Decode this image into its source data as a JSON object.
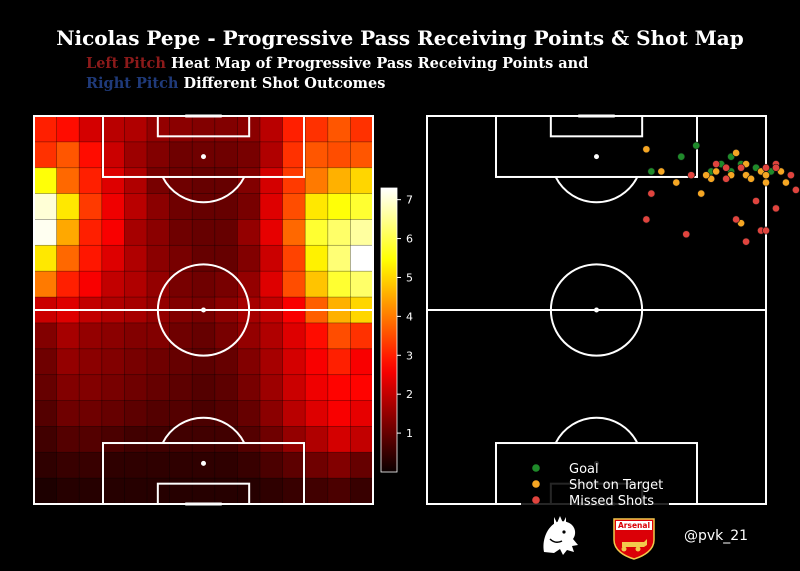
{
  "title": "Nicolas Pepe - Progressive Pass Receiving Points & Shot Map",
  "subtitle": {
    "line1_highlight": "Left Pitch",
    "line1_text": " Heat Map of Progressive Pass Receiving Points and",
    "line2_highlight": "Right Pitch",
    "line2_text": " Different Shot Outcomes",
    "left_color": "#8b1a1a",
    "right_color": "#1f3a7a"
  },
  "handle": "@pvk_21",
  "logos": {
    "league": "premier-league-lion-logo",
    "club": "arsenal-crest",
    "club_text": "Arsenal"
  },
  "chart_data": [
    {
      "type": "heatmap",
      "colormap": "hot",
      "colorbar": {
        "min": 0,
        "max": 7.3,
        "ticks": [
          1,
          2,
          3,
          4,
          5,
          6,
          7
        ]
      },
      "rows": 15,
      "cols": 15,
      "values": [
        [
          3.0,
          2.8,
          2.2,
          1.9,
          1.8,
          1.5,
          1.4,
          1.3,
          1.3,
          1.4,
          1.9,
          3.0,
          3.2,
          3.6,
          3.2
        ],
        [
          3.2,
          3.6,
          2.8,
          2.1,
          1.6,
          1.3,
          1.1,
          1.1,
          1.1,
          1.2,
          1.8,
          3.2,
          3.6,
          3.5,
          3.6
        ],
        [
          5.5,
          3.8,
          3.0,
          2.3,
          1.8,
          1.2,
          1.1,
          1.0,
          1.0,
          1.3,
          2.2,
          3.3,
          4.0,
          4.6,
          5.0
        ],
        [
          7.0,
          5.2,
          3.3,
          2.5,
          1.9,
          1.4,
          1.1,
          1.0,
          1.0,
          1.2,
          2.3,
          3.5,
          5.2,
          5.5,
          5.8
        ],
        [
          7.2,
          4.5,
          3.0,
          2.6,
          1.7,
          1.4,
          1.1,
          1.0,
          1.0,
          1.5,
          2.4,
          3.8,
          5.8,
          6.2,
          6.6
        ],
        [
          5.2,
          3.8,
          2.9,
          2.3,
          1.8,
          1.4,
          1.2,
          1.0,
          1.0,
          1.3,
          2.1,
          3.4,
          5.3,
          6.3,
          7.3
        ],
        [
          4.0,
          3.0,
          2.6,
          2.0,
          1.8,
          1.5,
          1.2,
          1.1,
          1.2,
          1.5,
          2.3,
          3.5,
          4.8,
          5.8,
          6.2
        ],
        [
          2.1,
          2.3,
          2.0,
          1.8,
          1.7,
          1.5,
          1.3,
          1.2,
          1.4,
          1.7,
          2.0,
          2.6,
          3.7,
          4.6,
          5.0
        ],
        [
          1.3,
          1.7,
          1.5,
          1.4,
          1.3,
          1.3,
          1.1,
          1.0,
          1.2,
          1.5,
          1.8,
          2.3,
          2.8,
          3.5,
          3.2
        ],
        [
          1.1,
          1.5,
          1.4,
          1.3,
          1.2,
          1.1,
          1.0,
          0.9,
          1.0,
          1.3,
          1.7,
          2.2,
          2.6,
          3.0,
          2.6
        ],
        [
          1.0,
          1.3,
          1.3,
          1.2,
          1.1,
          1.0,
          0.9,
          0.8,
          0.9,
          1.2,
          1.6,
          2.1,
          2.5,
          2.7,
          2.7
        ],
        [
          0.8,
          1.1,
          1.1,
          1.0,
          0.9,
          0.8,
          0.8,
          0.7,
          0.8,
          1.0,
          1.4,
          1.9,
          2.3,
          2.6,
          2.4
        ],
        [
          0.6,
          0.8,
          0.8,
          0.7,
          0.6,
          0.6,
          0.6,
          0.6,
          0.6,
          0.8,
          1.1,
          1.5,
          1.8,
          2.2,
          2.0
        ],
        [
          0.4,
          0.5,
          0.5,
          0.4,
          0.4,
          0.4,
          0.4,
          0.4,
          0.4,
          0.5,
          0.7,
          0.9,
          1.1,
          1.3,
          1.0
        ],
        [
          0.2,
          0.3,
          0.3,
          0.3,
          0.3,
          0.3,
          0.3,
          0.3,
          0.3,
          0.3,
          0.4,
          0.5,
          0.6,
          0.7,
          0.5
        ]
      ]
    },
    {
      "type": "scatter",
      "legend_position": "bottom-center",
      "series": [
        {
          "name": "Goal",
          "color": "#1f8a2a",
          "points": [
            [
              54,
              8
            ],
            [
              45,
              15
            ],
            [
              51,
              11
            ],
            [
              57,
              15
            ],
            [
              59,
              13
            ],
            [
              61,
              11
            ],
            [
              63,
              13
            ],
            [
              61,
              15
            ],
            [
              66,
              14
            ],
            [
              69,
              15
            ]
          ]
        },
        {
          "name": "Shot on Target",
          "color": "#f5a623",
          "points": [
            [
              44,
              9
            ],
            [
              47,
              15
            ],
            [
              50,
              18
            ],
            [
              57,
              17
            ],
            [
              58,
              15
            ],
            [
              56,
              16
            ],
            [
              62,
              10
            ],
            [
              61,
              16
            ],
            [
              64,
              13
            ],
            [
              64,
              16
            ],
            [
              65,
              17
            ],
            [
              67,
              15
            ],
            [
              68,
              16
            ],
            [
              71,
              15
            ],
            [
              68,
              18
            ],
            [
              72,
              18
            ],
            [
              55,
              21
            ],
            [
              63,
              29
            ]
          ]
        },
        {
          "name": "Missed Shots",
          "color": "#e0443e",
          "points": [
            [
              53,
              16
            ],
            [
              58,
              13
            ],
            [
              60,
              14
            ],
            [
              60,
              17
            ],
            [
              63,
              14
            ],
            [
              68,
              14
            ],
            [
              70,
              13
            ],
            [
              70,
              14
            ],
            [
              74,
              20
            ],
            [
              73,
              16
            ],
            [
              66,
              23
            ],
            [
              70,
              25
            ],
            [
              44,
              28
            ],
            [
              45,
              21
            ],
            [
              52,
              32
            ],
            [
              62,
              28
            ],
            [
              67,
              31
            ],
            [
              68,
              31
            ],
            [
              64,
              34
            ]
          ]
        }
      ]
    }
  ]
}
